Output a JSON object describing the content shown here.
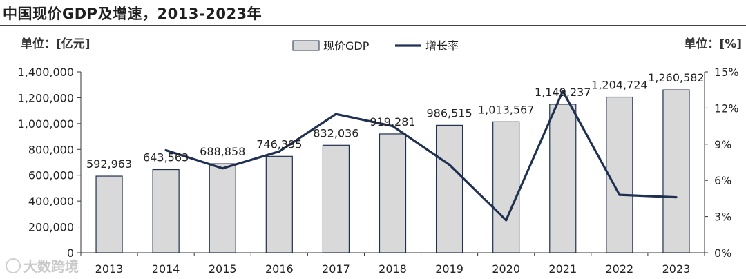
{
  "title": "中国现价GDP及增速，2013-2023年",
  "unit_left": "单位：[亿元]",
  "unit_right": "单位：[%]",
  "watermark": "大数跨境",
  "chart_data": {
    "type": "bar",
    "categories": [
      "2013",
      "2014",
      "2015",
      "2016",
      "2017",
      "2018",
      "2019",
      "2020",
      "2021",
      "2022",
      "2023"
    ],
    "series": [
      {
        "name": "现价GDP",
        "type": "bar",
        "axis": "left",
        "values": [
          592963,
          643563,
          688858,
          746395,
          832036,
          919281,
          986515,
          1013567,
          1149237,
          1204724,
          1260582
        ],
        "labels": [
          "592,963",
          "643,563",
          "688,858",
          "746,395",
          "832,036",
          "919,281",
          "986,515",
          "1,013,567",
          "1,149,237",
          "1,204,724",
          "1,260,582"
        ],
        "color": "#d9d9d9",
        "border": "#1f3050"
      },
      {
        "name": "增长率",
        "type": "line",
        "axis": "right",
        "values": [
          null,
          8.5,
          7.0,
          8.4,
          11.5,
          10.5,
          7.3,
          2.7,
          13.4,
          4.8,
          4.6
        ],
        "color": "#1f3050"
      }
    ],
    "y_left": {
      "min": 0,
      "max": 1400000,
      "step": 200000,
      "tick_labels": [
        "0",
        "200,000",
        "400,000",
        "600,000",
        "800,000",
        "1,000,000",
        "1,200,000",
        "1,400,000"
      ]
    },
    "y_right": {
      "min": 0,
      "max": 15,
      "step": 3,
      "tick_labels": [
        "0%",
        "3%",
        "6%",
        "9%",
        "12%",
        "15%"
      ]
    },
    "legend_position": "top-center",
    "grid": false
  }
}
